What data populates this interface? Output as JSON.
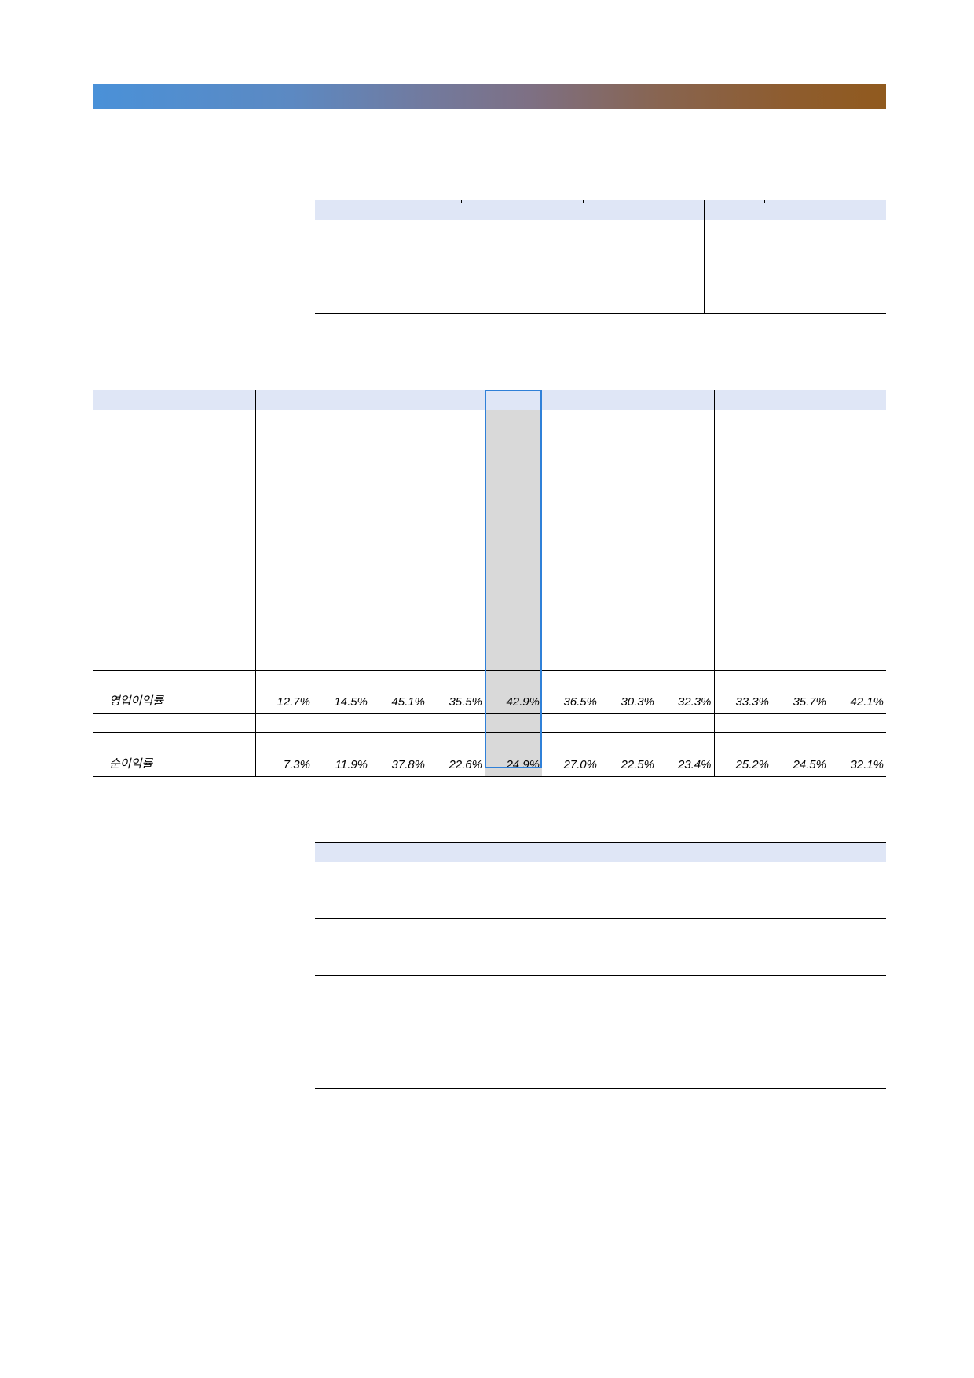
{
  "colors": {
    "banner_start": "#4a91d8",
    "banner_mid": "#7e7084",
    "banner_end": "#905a1e",
    "header_band": "#dfe6f6",
    "highlight_border": "#2f80d8",
    "highlight_fill": "#d9d9d9",
    "rule": "#000000",
    "footer_rule": "#b4b7c2"
  },
  "margin_table": {
    "operating_margin": {
      "label": "영업이익률",
      "values": [
        "12.7%",
        "14.5%",
        "45.1%",
        "35.5%",
        "42.9%",
        "36.5%",
        "30.3%",
        "32.3%",
        "33.3%",
        "35.7%",
        "42.1%"
      ]
    },
    "net_margin": {
      "label": "순이익률",
      "values": [
        "7.3%",
        "11.9%",
        "37.8%",
        "22.6%",
        "24.9%",
        "27.0%",
        "22.5%",
        "23.4%",
        "25.2%",
        "24.5%",
        "32.1%"
      ]
    }
  }
}
